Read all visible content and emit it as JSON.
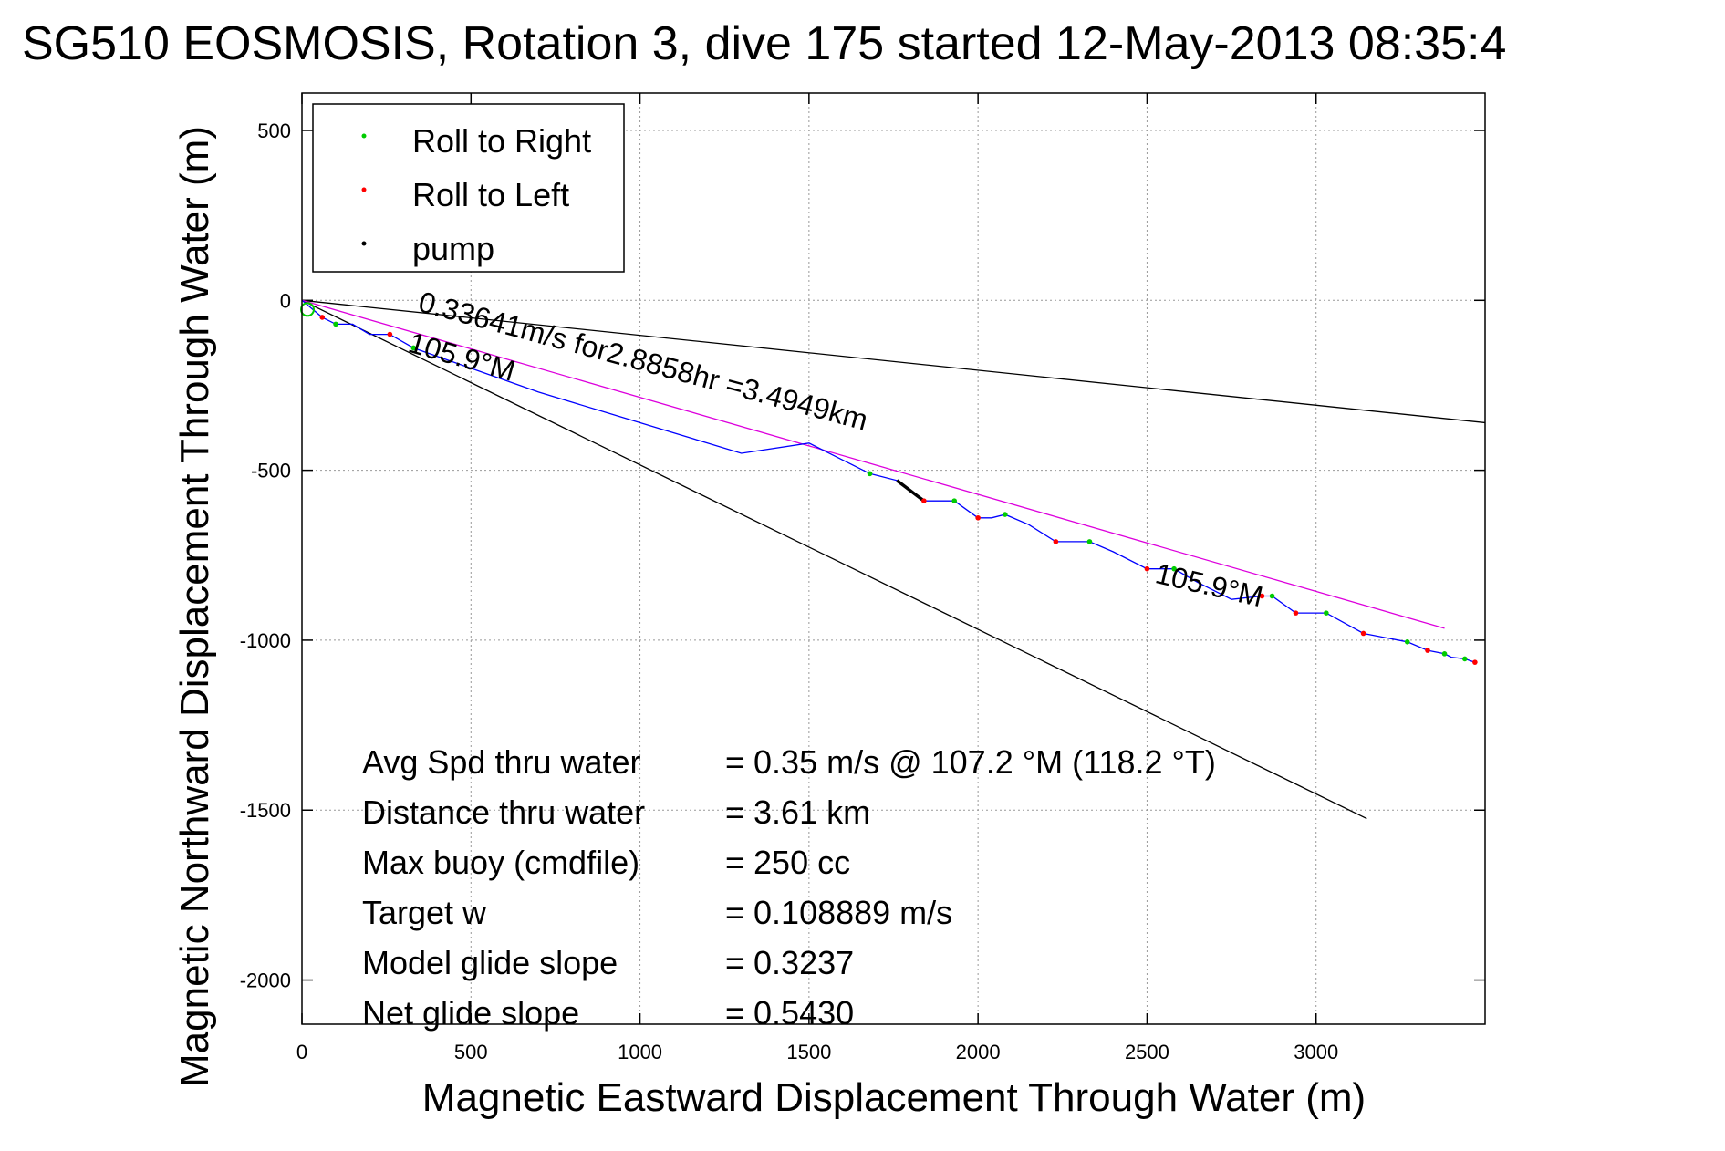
{
  "chart_data": {
    "type": "line",
    "title": "SG510 EOSMOSIS, Rotation 3, dive 175 started 12-May-2013 08:35:4",
    "xlabel": "Magnetic Eastward Displacement Through Water (m)",
    "ylabel": "Magnetic Northward Displacement Through Water (m)",
    "xlim": [
      0,
      3500
    ],
    "ylim": [
      -2130,
      610
    ],
    "xticks": [
      0,
      500,
      1000,
      1500,
      2000,
      2500,
      3000
    ],
    "yticks": [
      500,
      0,
      -500,
      -1000,
      -1500,
      -2000
    ],
    "grid": true,
    "legend": {
      "placement": "top-left",
      "entries": [
        {
          "label": "Roll to Right",
          "color": "#00cc00"
        },
        {
          "label": "Roll to Left",
          "color": "#ff0000"
        },
        {
          "label": "pump",
          "color": "#000000"
        }
      ]
    },
    "track": {
      "color": "#0000ff",
      "x": [
        0,
        60,
        100,
        150,
        200,
        260,
        330,
        500,
        700,
        900,
        1100,
        1300,
        1500,
        1600,
        1680,
        1760,
        1800,
        1840,
        1880,
        1930,
        2000,
        2040,
        2080,
        2150,
        2230,
        2300,
        2330,
        2400,
        2500,
        2580,
        2650,
        2750,
        2840,
        2870,
        2940,
        3030,
        3140,
        3270,
        3330,
        3380,
        3400,
        3440,
        3470
      ],
      "y": [
        0,
        -50,
        -70,
        -70,
        -100,
        -100,
        -140,
        -200,
        -270,
        -330,
        -390,
        -450,
        -420,
        -470,
        -510,
        -530,
        -560,
        -590,
        -590,
        -590,
        -640,
        -640,
        -630,
        -660,
        -710,
        -710,
        -710,
        -740,
        -790,
        -790,
        -830,
        -880,
        -870,
        -870,
        -920,
        -920,
        -980,
        -1005,
        -1030,
        -1040,
        -1050,
        -1055,
        -1065
      ]
    },
    "roll_right": {
      "color": "#00cc00",
      "x": [
        100,
        330,
        1680,
        1930,
        2080,
        2330,
        2580,
        2870,
        3030,
        3270,
        3380,
        3440
      ],
      "y": [
        -70,
        -140,
        -510,
        -590,
        -630,
        -710,
        -790,
        -870,
        -920,
        -1005,
        -1040,
        -1055
      ]
    },
    "roll_left": {
      "color": "#ff0000",
      "x": [
        60,
        260,
        1840,
        2000,
        2230,
        2500,
        2840,
        2940,
        3140,
        3330,
        3470
      ],
      "y": [
        -50,
        -100,
        -590,
        -640,
        -710,
        -790,
        -870,
        -920,
        -980,
        -1030,
        -1065
      ]
    },
    "pump": {
      "color": "#000000",
      "x": [
        1760,
        1780,
        1800,
        1820,
        1840
      ],
      "y": [
        -530,
        -545,
        -560,
        -575,
        -590
      ]
    },
    "reference_lines": [
      {
        "color": "#000000",
        "x": [
          0,
          3500
        ],
        "y": [
          0,
          -360
        ]
      },
      {
        "color": "#000000",
        "x": [
          0,
          3150
        ],
        "y": [
          0,
          -1525
        ]
      },
      {
        "color": "#dd00dd",
        "x": [
          0,
          3380
        ],
        "y": [
          0,
          -965
        ]
      }
    ],
    "annotations": [
      {
        "text": "0.33641m/s for2.8858hr =3.4949km",
        "x": 340,
        "y": -30
      },
      {
        "text": "105.9°M",
        "x": 310,
        "y": -150
      },
      {
        "text": "105.9°M",
        "x": 2520,
        "y": -830
      }
    ],
    "stats": [
      {
        "label": "Avg Spd thru water",
        "value": "=  0.35 m/s @ 107.2 °M (118.2 °T)"
      },
      {
        "label": "Distance thru water",
        "value": "=  3.61 km"
      },
      {
        "label": "Max buoy (cmdfile)",
        "value": "= 250 cc"
      },
      {
        "label": "Target w",
        "value": "= 0.108889 m/s"
      },
      {
        "label": "Model glide slope",
        "value": "= 0.3237"
      },
      {
        "label": "Net glide slope",
        "value": "= 0.5430"
      }
    ]
  }
}
